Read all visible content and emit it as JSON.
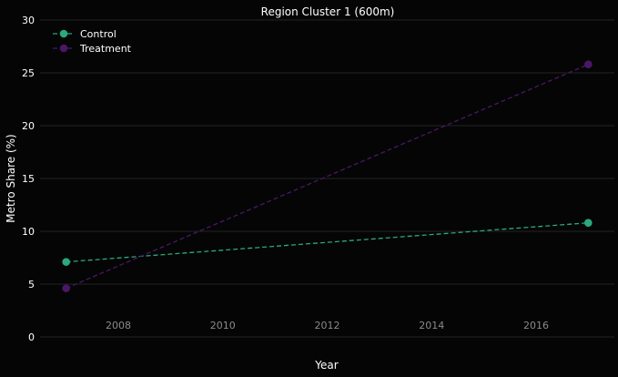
{
  "chart_data": {
    "type": "line",
    "title": "Region Cluster 1 (600m)",
    "xlabel": "Year",
    "ylabel": "Metro Share (%)",
    "xlim": [
      2006.5,
      2017.5
    ],
    "ylim": [
      0,
      30
    ],
    "x_ticks": [
      2008,
      2010,
      2012,
      2014,
      2016
    ],
    "y_ticks": [
      0,
      5,
      10,
      15,
      20,
      25,
      30
    ],
    "grid": "horizontal",
    "legend_position": "top-left",
    "series": [
      {
        "name": "Control",
        "color": "#2aa97e",
        "line_style": "dashed",
        "marker": "circle",
        "points": [
          {
            "x": 2007,
            "y": 7.1
          },
          {
            "x": 2017,
            "y": 10.8
          }
        ]
      },
      {
        "name": "Treatment",
        "color": "#4a1766",
        "line_style": "dashed",
        "marker": "circle",
        "points": [
          {
            "x": 2007,
            "y": 4.6
          },
          {
            "x": 2017,
            "y": 25.8
          }
        ]
      }
    ],
    "colors": {
      "background": "#050505",
      "grid": "#232323",
      "x_tick_text": "#8a8a8a",
      "y_tick_text": "#ffffff",
      "title_text": "#ffffff"
    }
  }
}
